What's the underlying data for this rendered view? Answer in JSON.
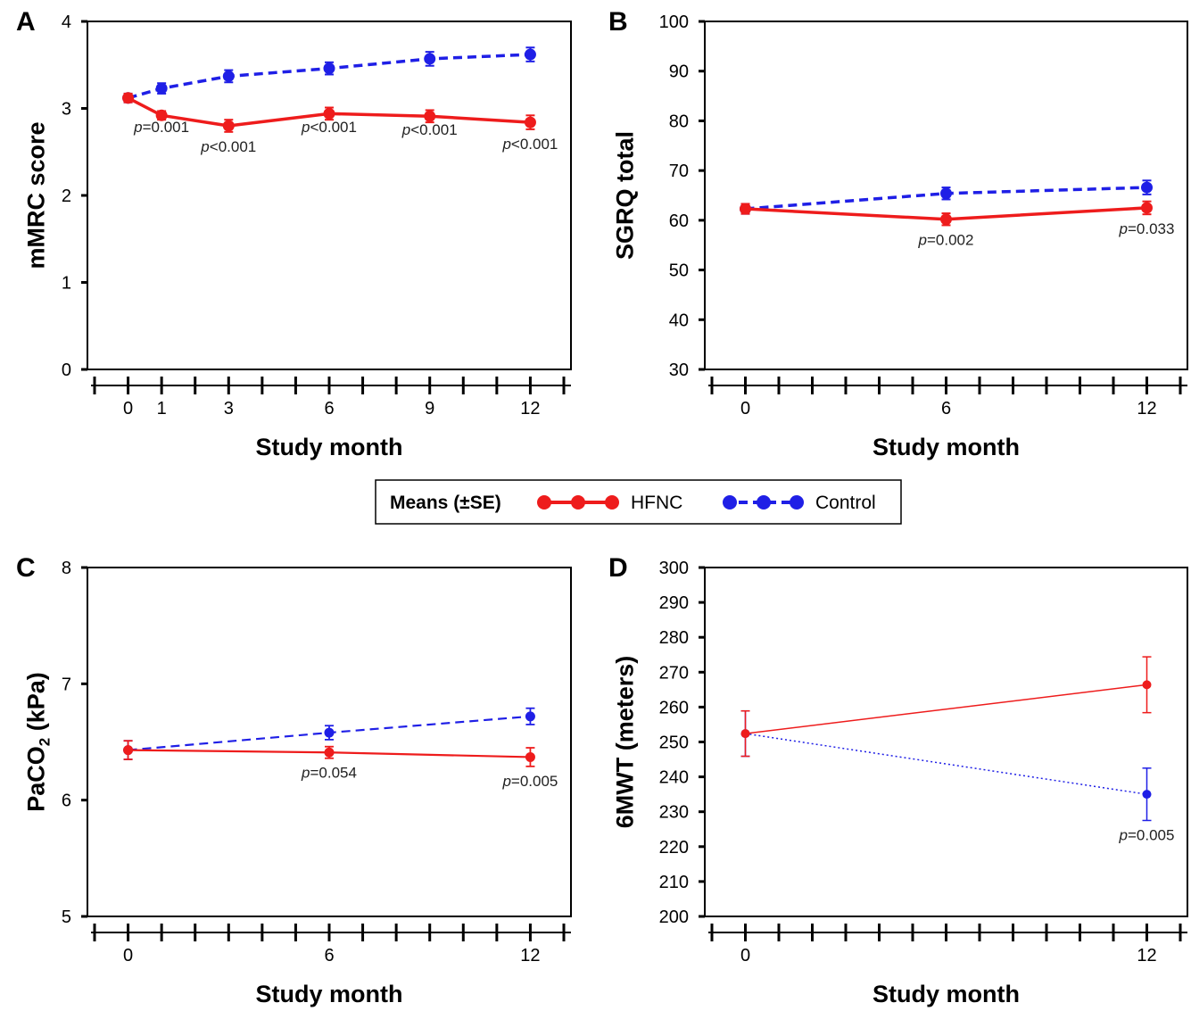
{
  "colors": {
    "hfnc": "#ee1c1c",
    "control": "#1f1fe6",
    "axis": "#000000"
  },
  "legend": {
    "title": "Means (±SE)",
    "hfnc_label": "HFNC",
    "control_label": "Control"
  },
  "chart_data": [
    {
      "panel": "A",
      "type": "line",
      "xlabel": "Study month",
      "ylabel": "mMRC score",
      "ylim": [
        0,
        4
      ],
      "yticks": [
        0,
        1,
        2,
        3,
        4
      ],
      "xlim": [
        -1,
        13
      ],
      "xticks": [
        0,
        1,
        3,
        6,
        9,
        12
      ],
      "x": [
        0,
        1,
        3,
        6,
        9,
        12
      ],
      "grid": false,
      "series": [
        {
          "name": "HFNC",
          "values": [
            3.12,
            2.92,
            2.8,
            2.94,
            2.91,
            2.84
          ],
          "se": [
            0.05,
            0.05,
            0.07,
            0.07,
            0.07,
            0.08
          ],
          "style": "solid"
        },
        {
          "name": "Control",
          "values": [
            3.12,
            3.23,
            3.37,
            3.46,
            3.57,
            3.62
          ],
          "se": [
            0.05,
            0.06,
            0.07,
            0.07,
            0.08,
            0.08
          ],
          "style": "dashed"
        }
      ],
      "annotations": [
        {
          "x": 1,
          "prefix": "p",
          "suffix": "=0.001"
        },
        {
          "x": 3,
          "prefix": "p",
          "suffix": "<0.001"
        },
        {
          "x": 6,
          "prefix": "p",
          "suffix": "<0.001"
        },
        {
          "x": 9,
          "prefix": "p",
          "suffix": "<0.001"
        },
        {
          "x": 12,
          "prefix": "p",
          "suffix": "<0.001"
        }
      ]
    },
    {
      "panel": "B",
      "type": "line",
      "xlabel": "Study month",
      "ylabel": "SGRQ total",
      "ylim": [
        30,
        100
      ],
      "yticks": [
        30,
        40,
        50,
        60,
        70,
        80,
        90,
        100
      ],
      "xlim": [
        -1,
        13
      ],
      "xticks": [
        0,
        6,
        12
      ],
      "x": [
        0,
        6,
        12
      ],
      "grid": false,
      "series": [
        {
          "name": "HFNC",
          "values": [
            62.3,
            60.2,
            62.5
          ],
          "se": [
            1.0,
            1.2,
            1.3
          ],
          "style": "solid"
        },
        {
          "name": "Control",
          "values": [
            62.3,
            65.4,
            66.6
          ],
          "se": [
            1.0,
            1.2,
            1.4
          ],
          "style": "dashed"
        }
      ],
      "annotations": [
        {
          "x": 6,
          "prefix": "p",
          "suffix": "=0.002"
        },
        {
          "x": 12,
          "prefix": "p",
          "suffix": "=0.033"
        }
      ]
    },
    {
      "panel": "C",
      "type": "line",
      "xlabel": "Study month",
      "ylabel": "PaCO",
      "ylabel_sub": "2",
      "ylabel_tail": " (kPa)",
      "ylim": [
        5,
        8
      ],
      "yticks": [
        5,
        6,
        7,
        8
      ],
      "xlim": [
        -1,
        13
      ],
      "xticks": [
        0,
        6,
        12
      ],
      "x": [
        0,
        6,
        12
      ],
      "grid": false,
      "series": [
        {
          "name": "HFNC",
          "values": [
            6.43,
            6.41,
            6.37
          ],
          "se": [
            0.08,
            0.05,
            0.08
          ],
          "style": "solid"
        },
        {
          "name": "Control",
          "values": [
            6.43,
            6.58,
            6.72
          ],
          "se": [
            0.08,
            0.06,
            0.07
          ],
          "style": "dashed"
        }
      ],
      "annotations": [
        {
          "x": 6,
          "prefix": "p",
          "suffix": "=0.054"
        },
        {
          "x": 12,
          "prefix": "p",
          "suffix": "=0.005"
        }
      ]
    },
    {
      "panel": "D",
      "type": "line",
      "xlabel": "Study month",
      "ylabel": "6MWT (meters)",
      "ylim": [
        200,
        300
      ],
      "yticks": [
        200,
        210,
        220,
        230,
        240,
        250,
        260,
        270,
        280,
        290,
        300
      ],
      "xlim": [
        -1,
        13
      ],
      "xticks": [
        0,
        12
      ],
      "x": [
        0,
        12
      ],
      "grid": false,
      "series": [
        {
          "name": "HFNC",
          "values": [
            252.4,
            266.4
          ],
          "se": [
            6.5,
            8.0
          ],
          "style": "thin-solid"
        },
        {
          "name": "Control",
          "values": [
            252.4,
            235.0
          ],
          "se": [
            6.5,
            7.5
          ],
          "style": "dotted"
        }
      ],
      "annotations": [
        {
          "x": 12,
          "prefix": "p",
          "suffix": "=0.005"
        }
      ]
    }
  ]
}
